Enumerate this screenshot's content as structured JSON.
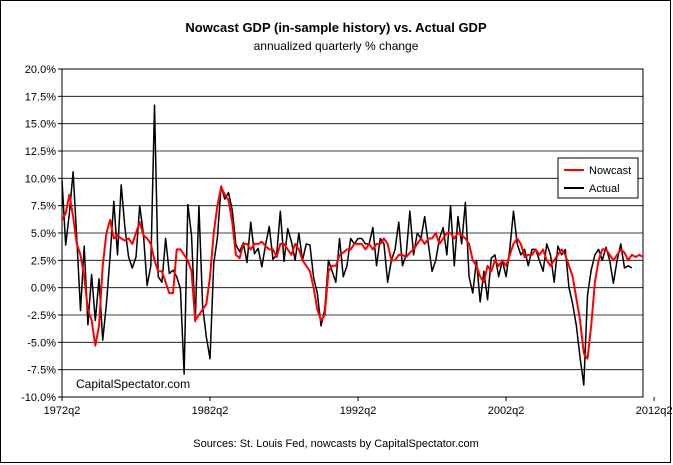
{
  "chart_data": {
    "type": "line",
    "title": "Nowcast GDP (in-sample history) vs. Actual GDP",
    "subtitle": "annualized quarterly % change",
    "source": "Sources: St. Louis Fed, nowcasts by CapitalSpectator.com",
    "watermark": "CapitalSpectator.com",
    "ylim": [
      -10,
      20
    ],
    "y_ticks": [
      "20.0%",
      "17.5%",
      "15.0%",
      "12.5%",
      "10.0%",
      "7.5%",
      "5.0%",
      "2.5%",
      "0.0%",
      "-2.5%",
      "-5.0%",
      "-7.5%",
      "-10.0%"
    ],
    "y_tick_values": [
      20,
      17.5,
      15,
      12.5,
      10,
      7.5,
      5,
      2.5,
      0,
      -2.5,
      -5,
      -7.5,
      -10
    ],
    "x_ticks": [
      "1972q2",
      "1982q2",
      "1992q2",
      "2002q2",
      "2012q2"
    ],
    "x_tick_index": [
      0,
      40,
      80,
      120,
      160
    ],
    "grid": true,
    "legend": "right",
    "series": [
      {
        "name": "Nowcast",
        "color": "#ff0000",
        "values": [
          6.2,
          6.8,
          8.5,
          6.5,
          4.0,
          3.0,
          1.0,
          -2.0,
          -3.0,
          -5.3,
          -3.5,
          2.0,
          5.0,
          6.2,
          4.5,
          4.8,
          4.5,
          4.3,
          4.5,
          4.0,
          5.0,
          6.0,
          4.8,
          4.5,
          4.0,
          2.5,
          1.5,
          1.5,
          0.5,
          -0.5,
          -0.5,
          3.5,
          3.5,
          3.0,
          2.5,
          1.5,
          -3.0,
          -2.5,
          -2.0,
          -1.5,
          1.0,
          5.0,
          7.5,
          9.2,
          8.5,
          8.0,
          6.0,
          3.0,
          2.7,
          4.0,
          4.0,
          3.5,
          4.0,
          4.0,
          4.2,
          3.8,
          3.5,
          3.5,
          2.8,
          4.0,
          4.0,
          3.5,
          3.0,
          4.0,
          3.5,
          2.5,
          2.0,
          1.5,
          0.0,
          -2.0,
          -3.0,
          -2.5,
          1.5,
          2.0,
          2.0,
          3.0,
          3.2,
          3.5,
          3.5,
          4.0,
          4.0,
          4.0,
          3.5,
          4.0,
          3.5,
          4.0,
          4.0,
          4.5,
          4.0,
          2.5,
          2.5,
          3.0,
          3.0,
          2.8,
          3.2,
          3.5,
          4.0,
          4.5,
          4.0,
          4.5,
          4.5,
          5.0,
          4.0,
          4.5,
          5.0,
          5.0,
          4.5,
          5.0,
          4.8,
          4.5,
          4.0,
          2.5,
          2.0,
          1.0,
          0.5,
          2.0,
          1.5,
          2.5,
          2.0,
          2.5,
          2.0,
          3.0,
          4.0,
          4.5,
          4.0,
          2.8,
          3.0,
          3.0,
          3.5,
          3.0,
          3.5,
          2.5,
          2.0,
          2.5,
          3.0,
          3.5,
          3.0,
          2.0,
          1.0,
          -1.0,
          -3.0,
          -6.0,
          -6.5,
          -3.5,
          0.5,
          2.5,
          3.5,
          3.5,
          3.0,
          2.5,
          3.0,
          3.5,
          3.2,
          2.5,
          3.0,
          2.8,
          3.0,
          2.8
        ]
      },
      {
        "name": "Actual",
        "color": "#000000",
        "values": [
          9.8,
          3.9,
          6.8,
          10.6,
          4.5,
          -2.1,
          3.8,
          -3.4,
          1.2,
          -3.0,
          0.8,
          -4.8,
          -1.5,
          2.9,
          7.9,
          3.0,
          9.4,
          5.5,
          2.8,
          1.8,
          2.8,
          7.5,
          4.9,
          0.2,
          2.0,
          16.7,
          1.0,
          0.5,
          4.5,
          1.3,
          1.6,
          1.0,
          -0.1,
          -7.9,
          7.6,
          4.8,
          -3.1,
          7.5,
          -1.7,
          -4.5,
          -6.5,
          2.2,
          4.6,
          9.3,
          8.1,
          8.7,
          7.1,
          3.9,
          3.3,
          4.1,
          2.3,
          6.0,
          3.1,
          3.6,
          1.9,
          3.9,
          5.6,
          2.6,
          3.0,
          7.0,
          2.4,
          5.4,
          4.2,
          2.5,
          5.0,
          2.5,
          4.0,
          3.9,
          0.9,
          -0.5,
          -3.5,
          -2.0,
          2.5,
          1.5,
          0.5,
          4.5,
          1.0,
          2.0,
          4.5,
          4.0,
          4.5,
          4.5,
          4.0,
          4.0,
          5.5,
          2.0,
          4.5,
          4.0,
          0.5,
          2.5,
          3.5,
          6.0,
          2.0,
          3.0,
          7.0,
          3.0,
          5.0,
          4.5,
          6.5,
          4.0,
          1.5,
          2.5,
          4.5,
          5.5,
          3.0,
          7.5,
          2.0,
          6.5,
          4.0,
          7.8,
          1.0,
          -0.5,
          2.5,
          -1.3,
          1.5,
          -1.1,
          2.7,
          3.0,
          1.0,
          2.5,
          1.0,
          3.5,
          7.0,
          4.0,
          3.0,
          3.5,
          2.0,
          3.5,
          3.5,
          2.5,
          1.5,
          4.0,
          3.0,
          0.5,
          3.8,
          3.0,
          3.5,
          0.0,
          -1.5,
          -3.5,
          -6.4,
          -8.9,
          -0.7,
          1.6,
          3.0,
          3.5,
          2.5,
          3.7,
          2.5,
          0.4,
          2.5,
          4.0,
          1.8,
          2.0,
          1.8
        ]
      }
    ]
  }
}
